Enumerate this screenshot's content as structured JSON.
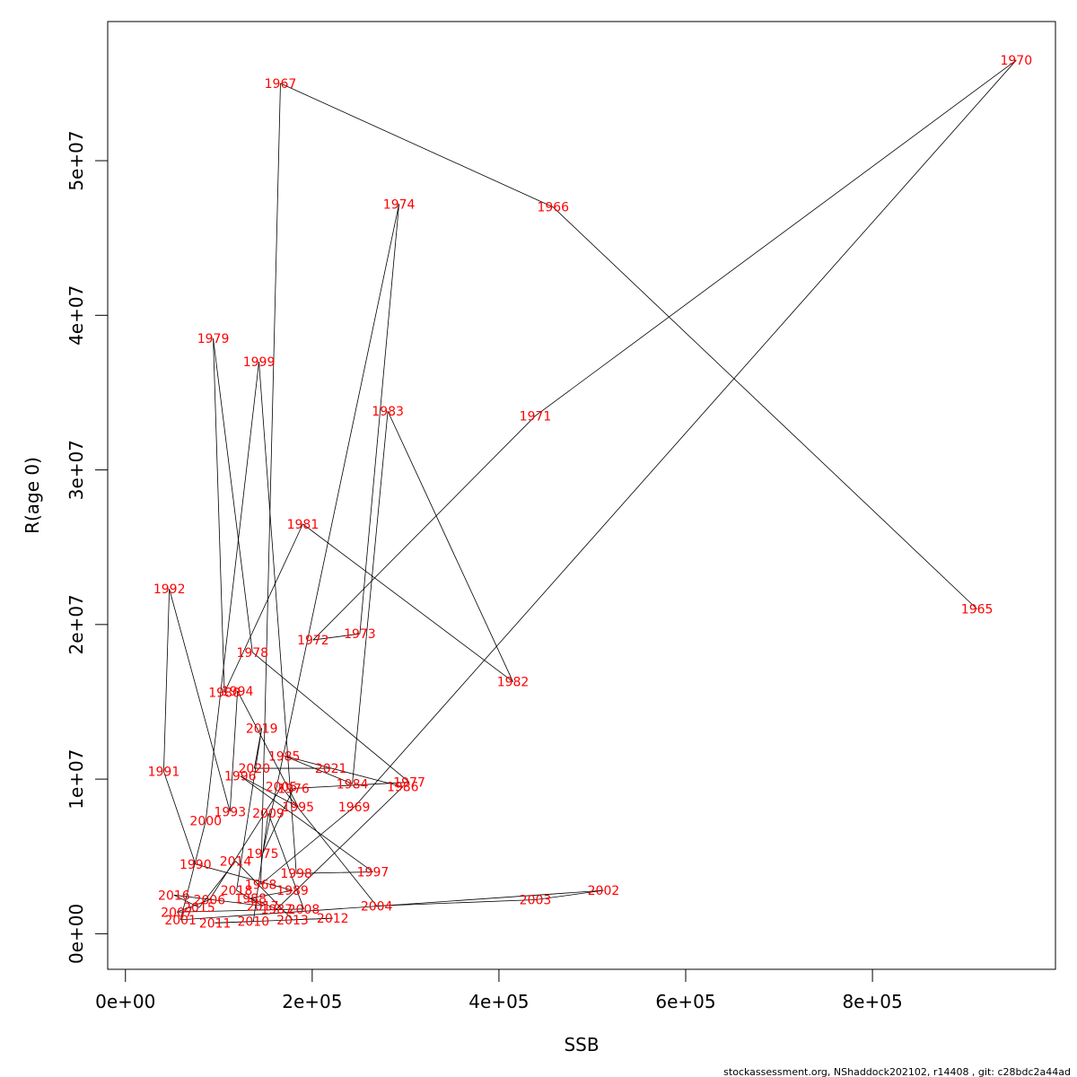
{
  "footer": "stockassessment.org, NShaddock202102, r14408 , git: c28bdc2a44ad",
  "chart_data": {
    "type": "line",
    "xlabel": "SSB",
    "ylabel": "R(age 0)",
    "xlim": [
      -19000,
      996000
    ],
    "ylim": [
      -2300000,
      59000000
    ],
    "x_ticks": [
      0,
      200000,
      400000,
      600000,
      800000
    ],
    "x_tick_labels": [
      "0e+00",
      "2e+05",
      "4e+05",
      "6e+05",
      "8e+05"
    ],
    "y_ticks": [
      0,
      10000000,
      20000000,
      30000000,
      40000000,
      50000000
    ],
    "y_tick_labels": [
      "0e+00",
      "1e+07",
      "2e+07",
      "3e+07",
      "4e+07",
      "5e+07"
    ],
    "line_color": "#000000",
    "label_color": "#ff0000",
    "grid": false,
    "points": [
      {
        "year": "1965",
        "x": 912000,
        "y": 21000000
      },
      {
        "year": "1966",
        "x": 458000,
        "y": 47000000
      },
      {
        "year": "1967",
        "x": 166000,
        "y": 55000000
      },
      {
        "year": "1968",
        "x": 145000,
        "y": 3200000
      },
      {
        "year": "1969",
        "x": 245000,
        "y": 8200000
      },
      {
        "year": "1970",
        "x": 954000,
        "y": 56500000
      },
      {
        "year": "1971",
        "x": 439000,
        "y": 33500000
      },
      {
        "year": "1972",
        "x": 201000,
        "y": 19000000
      },
      {
        "year": "1973",
        "x": 251000,
        "y": 19400000
      },
      {
        "year": "1974",
        "x": 293000,
        "y": 47200000
      },
      {
        "year": "1975",
        "x": 147000,
        "y": 5200000
      },
      {
        "year": "1976",
        "x": 180000,
        "y": 9400000
      },
      {
        "year": "1977",
        "x": 304000,
        "y": 9800000
      },
      {
        "year": "1978",
        "x": 136000,
        "y": 18200000
      },
      {
        "year": "1979",
        "x": 94000,
        "y": 38500000
      },
      {
        "year": "1980",
        "x": 106000,
        "y": 15600000
      },
      {
        "year": "1981",
        "x": 190000,
        "y": 26500000
      },
      {
        "year": "1982",
        "x": 415000,
        "y": 16300000
      },
      {
        "year": "1983",
        "x": 281000,
        "y": 33800000
      },
      {
        "year": "1984",
        "x": 243000,
        "y": 9700000
      },
      {
        "year": "1985",
        "x": 170000,
        "y": 11500000
      },
      {
        "year": "1986",
        "x": 297000,
        "y": 9500000
      },
      {
        "year": "1987",
        "x": 162000,
        "y": 1600000
      },
      {
        "year": "1988",
        "x": 134000,
        "y": 2300000
      },
      {
        "year": "1989",
        "x": 179000,
        "y": 2800000
      },
      {
        "year": "1990",
        "x": 75000,
        "y": 4500000
      },
      {
        "year": "1991",
        "x": 41000,
        "y": 10500000
      },
      {
        "year": "1992",
        "x": 47000,
        "y": 22300000
      },
      {
        "year": "1993",
        "x": 112000,
        "y": 7900000
      },
      {
        "year": "1994",
        "x": 120000,
        "y": 15700000
      },
      {
        "year": "1995",
        "x": 185000,
        "y": 8200000
      },
      {
        "year": "1996",
        "x": 123000,
        "y": 10200000
      },
      {
        "year": "1997",
        "x": 265000,
        "y": 4000000
      },
      {
        "year": "1998",
        "x": 183000,
        "y": 3900000
      },
      {
        "year": "1999",
        "x": 143000,
        "y": 37000000
      },
      {
        "year": "2000",
        "x": 86000,
        "y": 7300000
      },
      {
        "year": "2001",
        "x": 59000,
        "y": 900000
      },
      {
        "year": "2002",
        "x": 512000,
        "y": 2800000
      },
      {
        "year": "2003",
        "x": 439000,
        "y": 2200000
      },
      {
        "year": "2004",
        "x": 269000,
        "y": 1800000
      },
      {
        "year": "2005",
        "x": 167000,
        "y": 9500000
      },
      {
        "year": "2006",
        "x": 90000,
        "y": 2200000
      },
      {
        "year": "2007",
        "x": 55000,
        "y": 1400000
      },
      {
        "year": "2008",
        "x": 191000,
        "y": 1600000
      },
      {
        "year": "2009",
        "x": 153000,
        "y": 7800000
      },
      {
        "year": "2010",
        "x": 137000,
        "y": 800000
      },
      {
        "year": "2011",
        "x": 96000,
        "y": 700000
      },
      {
        "year": "2012",
        "x": 222000,
        "y": 1000000
      },
      {
        "year": "2013",
        "x": 179000,
        "y": 900000
      },
      {
        "year": "2014",
        "x": 118000,
        "y": 4700000
      },
      {
        "year": "2015",
        "x": 79000,
        "y": 1700000
      },
      {
        "year": "2016",
        "x": 52000,
        "y": 2500000
      },
      {
        "year": "2017",
        "x": 147000,
        "y": 1800000
      },
      {
        "year": "2018",
        "x": 119000,
        "y": 2800000
      },
      {
        "year": "2019",
        "x": 146000,
        "y": 13300000
      },
      {
        "year": "2020",
        "x": 138000,
        "y": 10700000
      },
      {
        "year": "2021",
        "x": 220000,
        "y": 10700000
      }
    ]
  }
}
